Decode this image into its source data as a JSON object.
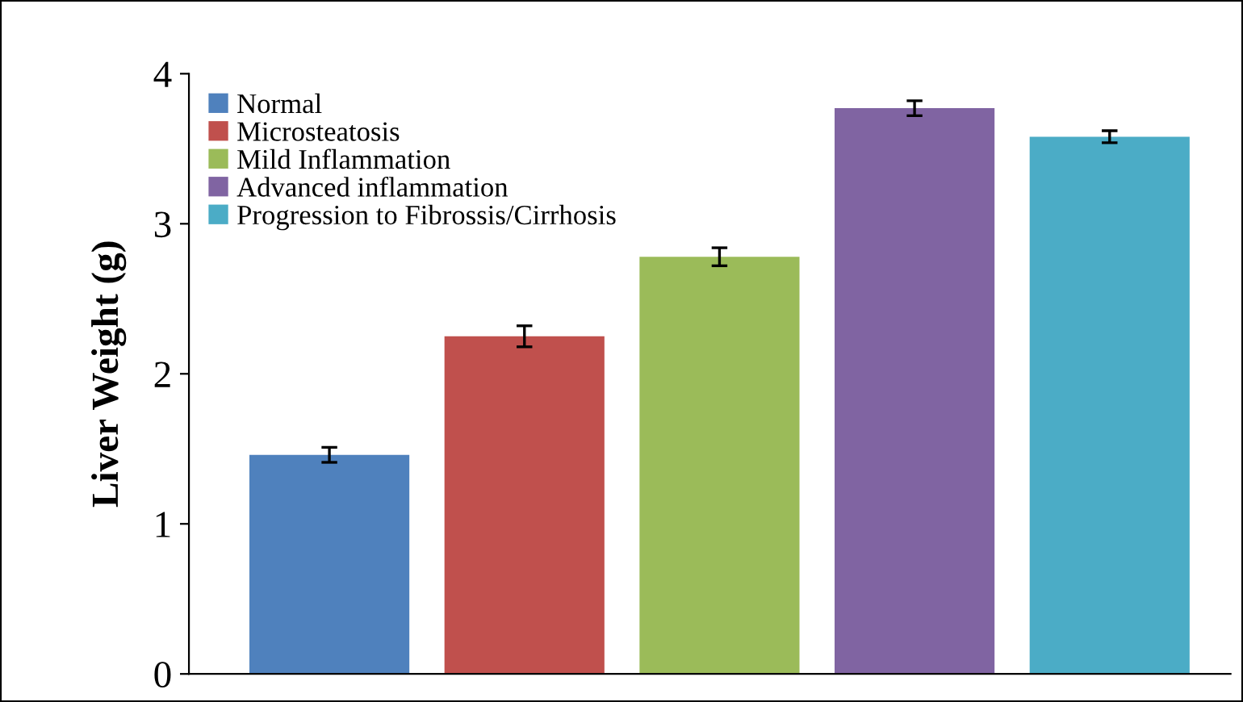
{
  "chart_data": {
    "type": "bar",
    "ylabel": "Liver Weight (g)",
    "categories": [
      null,
      null,
      null,
      null,
      null
    ],
    "series": [
      {
        "name": "Normal",
        "color": "#4f81bd",
        "values": [
          1.46,
          null,
          null,
          null,
          null
        ],
        "errors": [
          0.05,
          null,
          null,
          null,
          null
        ]
      },
      {
        "name": "Microsteatosis",
        "color": "#c0504d",
        "values": [
          null,
          2.25,
          null,
          null,
          null
        ],
        "errors": [
          null,
          0.07,
          null,
          null,
          null
        ]
      },
      {
        "name": "Mild Inflammation",
        "color": "#9bbb59",
        "values": [
          null,
          null,
          2.78,
          null,
          null
        ],
        "errors": [
          null,
          null,
          0.06,
          null,
          null
        ]
      },
      {
        "name": "Advanced inflammation",
        "color": "#8064a2",
        "values": [
          null,
          null,
          null,
          3.77,
          null
        ],
        "errors": [
          null,
          null,
          null,
          0.05,
          null
        ]
      },
      {
        "name": "Progression to Fibrossis/Cirrhosis",
        "color": "#4bacc6",
        "values": [
          null,
          null,
          null,
          null,
          3.58
        ],
        "errors": [
          null,
          null,
          null,
          null,
          0.04
        ]
      }
    ],
    "ylim": [
      0,
      4
    ],
    "yticks": [
      0,
      1,
      2,
      3,
      4
    ],
    "grid": false,
    "legend": "top left"
  }
}
